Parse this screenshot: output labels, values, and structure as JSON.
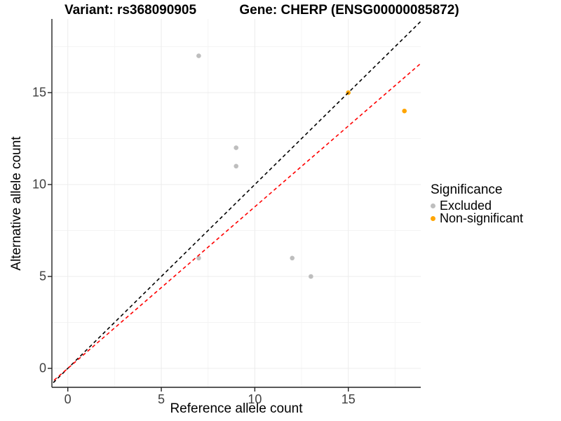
{
  "titles": {
    "variant": "Variant: rs368090905",
    "gene": "Gene: CHERP (ENSG00000085872)"
  },
  "chart_data": {
    "type": "scatter",
    "xlabel": "Reference allele count",
    "ylabel": "Alternative allele count",
    "x_ticks": [
      0,
      5,
      10,
      15
    ],
    "y_ticks": [
      0,
      5,
      10,
      15
    ],
    "xlim": [
      -0.9,
      18.9
    ],
    "ylim": [
      -1.0,
      19.0
    ],
    "grid": "major and minor, light gray",
    "legend": {
      "title": "Significance",
      "position": "right",
      "items": [
        {
          "label": "Excluded",
          "color": "#bebebe"
        },
        {
          "label": "Non-significant",
          "color": "#ffa500"
        }
      ]
    },
    "series": [
      {
        "name": "Excluded",
        "color": "#bebebe",
        "points": [
          [
            7,
            17
          ],
          [
            9,
            12
          ],
          [
            9,
            11
          ],
          [
            7,
            6
          ],
          [
            12,
            6
          ],
          [
            13,
            5
          ]
        ]
      },
      {
        "name": "Non-significant",
        "color": "#ffa500",
        "points": [
          [
            15,
            15
          ],
          [
            18,
            14
          ]
        ]
      }
    ],
    "lines": [
      {
        "name": "identity-line",
        "color": "#000000",
        "dashed": true,
        "slope": 1.0,
        "intercept": 0
      },
      {
        "name": "allelic-ratio-line",
        "color": "#ff0000",
        "dashed": true,
        "slope": 0.879,
        "intercept": 0
      }
    ]
  },
  "style_colors": {
    "axis_line": "#222222",
    "major_grid": "#ececec",
    "minor_grid": "#f4f4f4",
    "tick_text": "#404040"
  }
}
